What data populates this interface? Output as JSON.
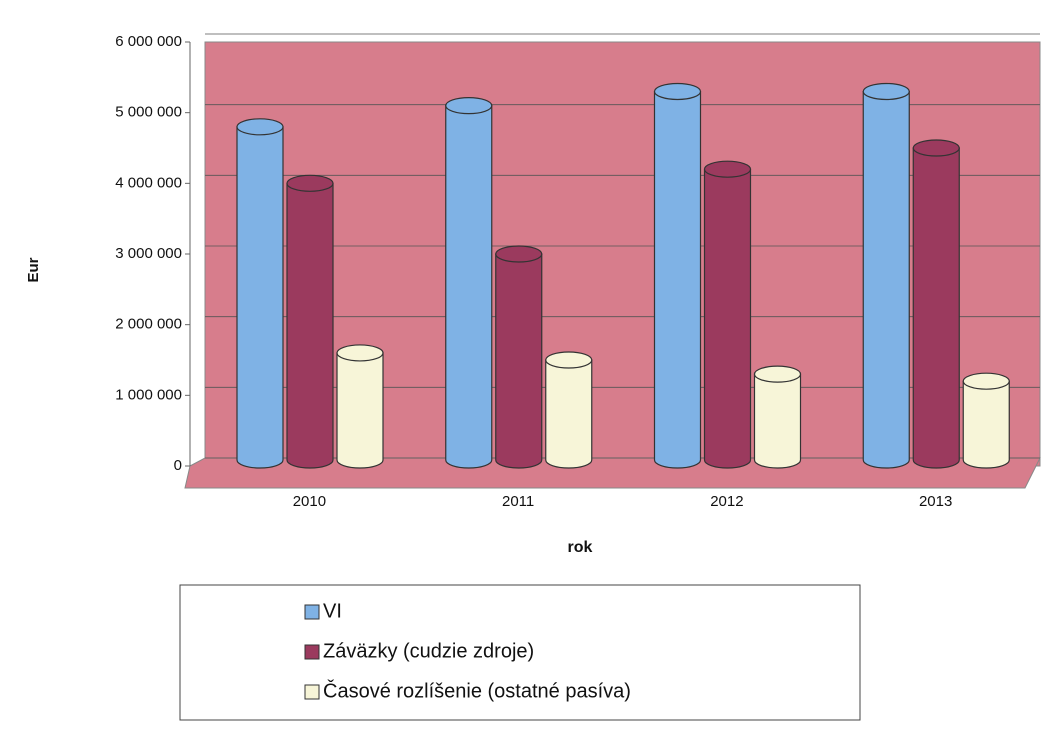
{
  "chart_data": {
    "type": "bar",
    "categories": [
      "2010",
      "2011",
      "2012",
      "2013"
    ],
    "series": [
      {
        "name": "VI",
        "color": "#7fb2e5",
        "values": [
          4800000,
          5100000,
          5300000,
          5300000
        ]
      },
      {
        "name": "Záväzky (cudzie zdroje)",
        "color": "#9b3a5e",
        "values": [
          4000000,
          3000000,
          4200000,
          4500000
        ]
      },
      {
        "name": "Časové rozlíšenie (ostatné pasíva)",
        "color": "#f7f5d8",
        "values": [
          1600000,
          1500000,
          1300000,
          1200000
        ]
      }
    ],
    "y_label": "Eur",
    "x_label": "rok",
    "ylim": [
      0,
      6000000
    ],
    "yticks": [
      0,
      {
        "value": 1000000,
        "label": "1 000 000"
      },
      {
        "value": 2000000,
        "label": "2 000 000"
      },
      {
        "value": 3000000,
        "label": "3 000 000"
      },
      {
        "value": 4000000,
        "label": "4 000 000"
      },
      {
        "value": 5000000,
        "label": "5 000 000"
      },
      {
        "value": 6000000,
        "label": "6 000 000"
      }
    ],
    "grid": true,
    "wall_color": "#d77d8c"
  }
}
